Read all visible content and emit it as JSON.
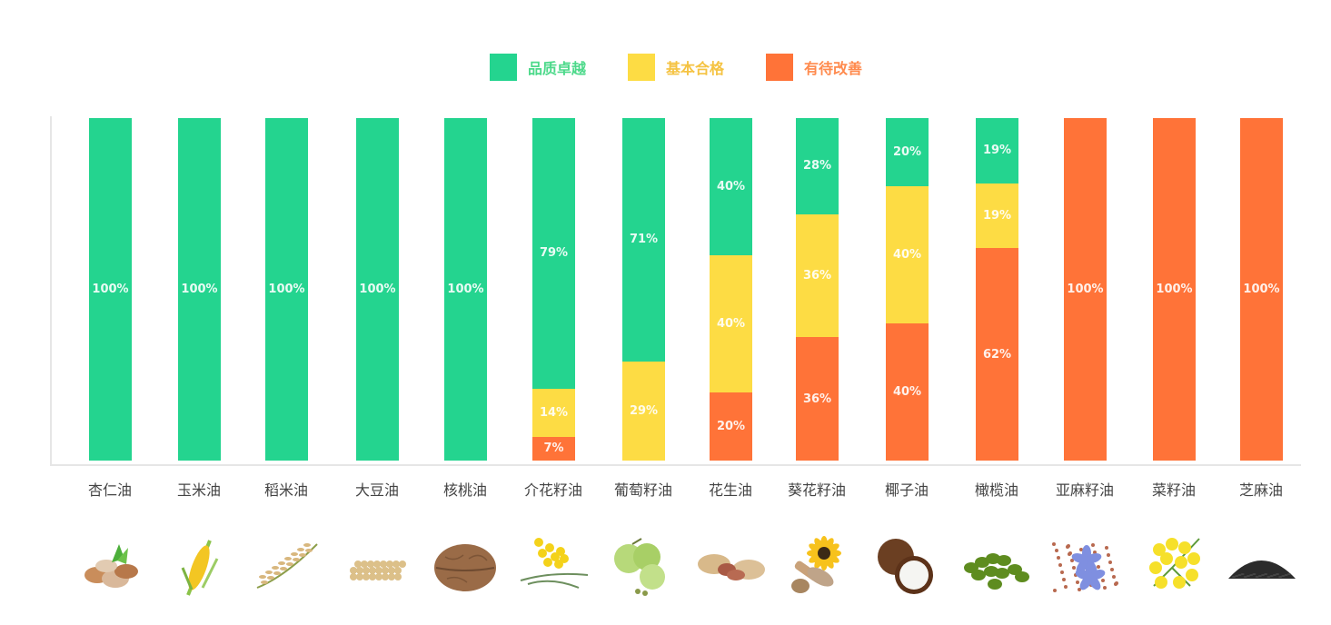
{
  "legend": [
    {
      "label": "品质卓越",
      "color": "#24D48F",
      "text_color": "#4CD98A"
    },
    {
      "label": "基本合格",
      "color": "#FDDC44",
      "text_color": "#F5C342"
    },
    {
      "label": "有待改善",
      "color": "#FF7338",
      "text_color": "#FF8A4D"
    }
  ],
  "chart_data": {
    "type": "bar",
    "stacked": true,
    "normalized": true,
    "title": "",
    "xlabel": "",
    "ylabel": "",
    "ylim": [
      0,
      100
    ],
    "grid": false,
    "legend_position": "top",
    "categories": [
      "杏仁油",
      "玉米油",
      "稻米油",
      "大豆油",
      "核桃油",
      "介花籽油",
      "葡萄籽油",
      "花生油",
      "葵花籽油",
      "椰子油",
      "橄榄油",
      "亚麻籽油",
      "菜籽油",
      "芝麻油"
    ],
    "series": [
      {
        "name": "品质卓越",
        "color": "#24D48F",
        "values": [
          100,
          100,
          100,
          100,
          100,
          79,
          71,
          40,
          28,
          20,
          19,
          0,
          0,
          0
        ]
      },
      {
        "name": "基本合格",
        "color": "#FDDC44",
        "values": [
          0,
          0,
          0,
          0,
          0,
          14,
          29,
          40,
          36,
          40,
          19,
          0,
          0,
          0
        ]
      },
      {
        "name": "有待改善",
        "color": "#FF7338",
        "values": [
          0,
          0,
          0,
          0,
          0,
          7,
          0,
          20,
          36,
          40,
          62,
          100,
          100,
          100
        ]
      }
    ],
    "data_labels": [
      [
        "100%",
        "",
        ""
      ],
      [
        "100%",
        "",
        ""
      ],
      [
        "100%",
        "",
        ""
      ],
      [
        "100%",
        "",
        ""
      ],
      [
        "100%",
        "",
        ""
      ],
      [
        "79%",
        "14%",
        "7%"
      ],
      [
        "71%",
        "29%",
        ""
      ],
      [
        "40%",
        "40%",
        "20%"
      ],
      [
        "28%",
        "36%",
        "36%"
      ],
      [
        "20%",
        "40%",
        "40%"
      ],
      [
        "19%",
        "19%",
        "62%"
      ],
      [
        "",
        "",
        "100%"
      ],
      [
        "",
        "",
        "100%"
      ],
      [
        "",
        "",
        "100%"
      ]
    ]
  },
  "images": [
    {
      "name": "almond",
      "icon": "almond-icon"
    },
    {
      "name": "corn",
      "icon": "corn-icon"
    },
    {
      "name": "rice",
      "icon": "rice-icon"
    },
    {
      "name": "soybean",
      "icon": "soybean-icon"
    },
    {
      "name": "walnut",
      "icon": "walnut-icon"
    },
    {
      "name": "mustard-flower",
      "icon": "mustard-flower-icon"
    },
    {
      "name": "grape",
      "icon": "grape-icon"
    },
    {
      "name": "peanut",
      "icon": "peanut-icon"
    },
    {
      "name": "sunflower",
      "icon": "sunflower-icon"
    },
    {
      "name": "coconut",
      "icon": "coconut-icon"
    },
    {
      "name": "olive",
      "icon": "olive-icon"
    },
    {
      "name": "flaxseed",
      "icon": "flaxseed-icon"
    },
    {
      "name": "rapeseed-flower",
      "icon": "rapeseed-flower-icon"
    },
    {
      "name": "sesame",
      "icon": "sesame-icon"
    }
  ]
}
